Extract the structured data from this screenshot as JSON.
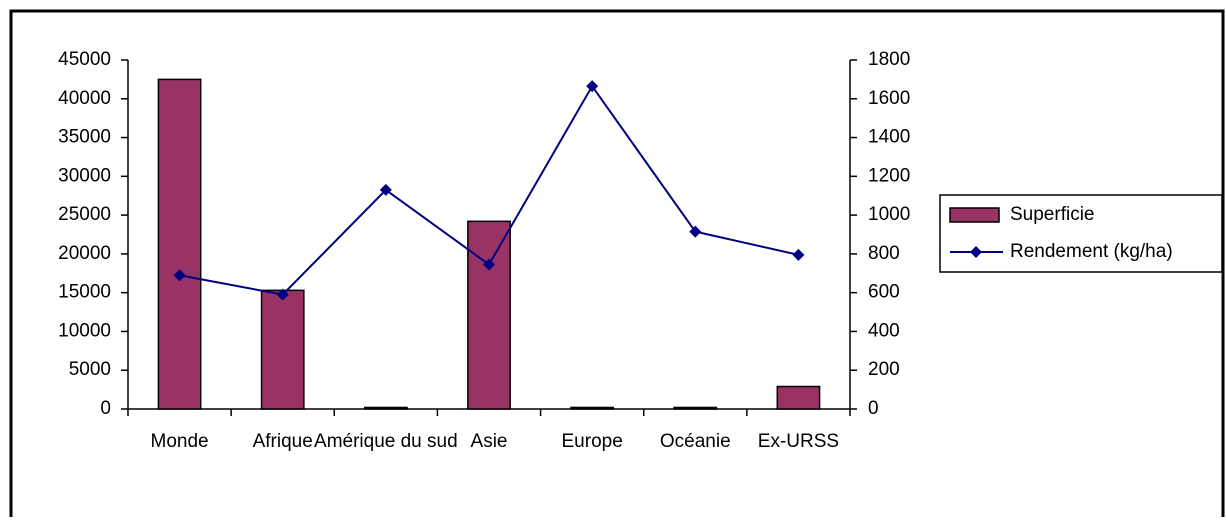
{
  "chart_data": {
    "type": "combo",
    "categories": [
      "Monde",
      "Afrique",
      "Amérique du sud",
      "Asie",
      "Europe",
      "Océanie",
      "Ex-URSS"
    ],
    "series": [
      {
        "name": "Superficie",
        "type": "bar",
        "color": "#993366",
        "values": [
          42500,
          15300,
          200,
          24200,
          200,
          200,
          2900
        ]
      },
      {
        "name": "Rendement (kg/ha)",
        "type": "line",
        "axis": "y2",
        "color": "#000080",
        "values": [
          690,
          590,
          1130,
          745,
          1665,
          915,
          795
        ]
      }
    ],
    "ylim": [
      0,
      45000
    ],
    "yticks": [
      0,
      5000,
      10000,
      15000,
      20000,
      25000,
      30000,
      35000,
      40000,
      45000
    ],
    "y2lim": [
      0,
      1800
    ],
    "y2ticks": [
      0,
      200,
      400,
      600,
      800,
      1000,
      1200,
      1400,
      1600,
      1800
    ],
    "legend": "right"
  }
}
